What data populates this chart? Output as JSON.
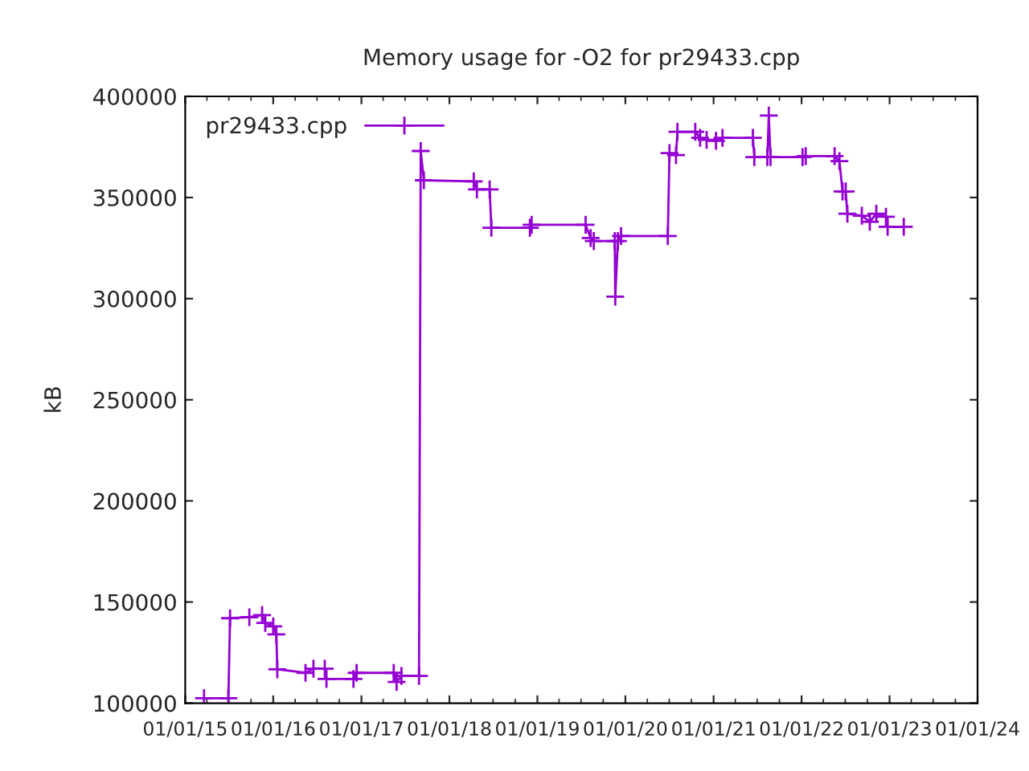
{
  "chart_data": {
    "type": "line",
    "title": "Memory usage for -O2 for pr29433.cpp",
    "ylabel": "kB",
    "xlim": [
      "2015-01-01",
      "2024-01-01"
    ],
    "xticks": [
      {
        "value": "2015-01-01",
        "label": "01/01/15"
      },
      {
        "value": "2016-01-01",
        "label": "01/01/16"
      },
      {
        "value": "2017-01-01",
        "label": "01/01/17"
      },
      {
        "value": "2018-01-01",
        "label": "01/01/18"
      },
      {
        "value": "2019-01-01",
        "label": "01/01/19"
      },
      {
        "value": "2020-01-01",
        "label": "01/01/20"
      },
      {
        "value": "2021-01-01",
        "label": "01/01/21"
      },
      {
        "value": "2022-01-01",
        "label": "01/01/22"
      },
      {
        "value": "2023-01-01",
        "label": "01/01/23"
      },
      {
        "value": "2024-01-01",
        "label": "01/01/24"
      }
    ],
    "ylim": [
      100000,
      400000
    ],
    "yticks": [
      100000,
      150000,
      200000,
      250000,
      300000,
      350000,
      400000
    ],
    "grid": false,
    "legend": "top left",
    "marker": "cross",
    "line_style": "solid",
    "series": [
      {
        "name": "pr29433.cpp",
        "color": "#9400d3",
        "x": [
          "2015-03-20",
          "2015-06-29",
          "2015-07-06",
          "2015-09-24",
          "2015-11-16",
          "2015-11-29",
          "2016-01-01",
          "2016-01-14",
          "2016-01-18",
          "2016-05-14",
          "2016-06-16",
          "2016-08-02",
          "2016-08-09",
          "2016-11-29",
          "2016-12-12",
          "2017-05-15",
          "2017-05-27",
          "2017-06-16",
          "2017-08-28",
          "2017-09-04",
          "2017-09-17",
          "2018-04-12",
          "2018-04-25",
          "2018-06-17",
          "2018-06-24",
          "2018-12-01",
          "2018-12-08",
          "2019-07-20",
          "2019-08-10",
          "2019-08-23",
          "2019-11-18",
          "2019-11-20",
          "2019-12-01",
          "2019-12-14",
          "2020-06-25",
          "2020-07-02",
          "2020-07-29",
          "2020-08-04",
          "2020-10-17",
          "2020-11-06",
          "2020-12-03",
          "2021-01-11",
          "2021-02-07",
          "2021-06-13",
          "2021-06-19",
          "2021-08-12",
          "2021-08-18",
          "2021-08-25",
          "2022-01-05",
          "2022-01-18",
          "2022-05-18",
          "2022-06-07",
          "2022-06-20",
          "2022-07-03",
          "2022-07-10",
          "2022-09-08",
          "2022-10-11",
          "2022-11-07",
          "2022-12-17",
          "2022-12-24",
          "2023-03-01"
        ],
        "values": [
          102400,
          102400,
          142000,
          142500,
          143500,
          139700,
          138000,
          134000,
          116700,
          115000,
          117000,
          117000,
          112000,
          112000,
          115000,
          115000,
          110500,
          113500,
          113500,
          373000,
          358500,
          358000,
          354000,
          354000,
          335000,
          335000,
          336500,
          336500,
          330000,
          328500,
          328500,
          301000,
          328500,
          331000,
          331000,
          372000,
          371000,
          382500,
          382500,
          379500,
          378500,
          378000,
          379500,
          379500,
          370000,
          370000,
          390500,
          370000,
          370000,
          370500,
          370500,
          368000,
          353000,
          353000,
          342000,
          341000,
          338000,
          342000,
          340500,
          335500,
          335500
        ]
      }
    ]
  }
}
